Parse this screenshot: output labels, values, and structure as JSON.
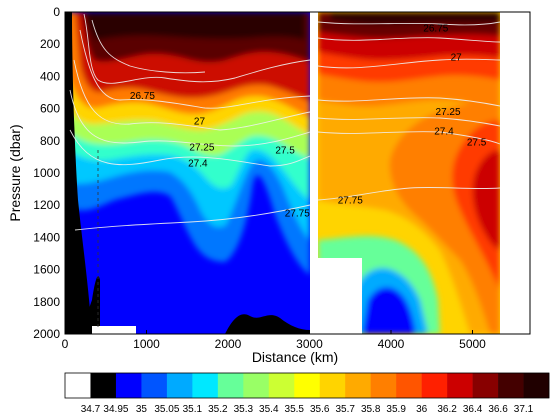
{
  "chart_data": {
    "type": "heatmap",
    "xlabel": "Distance (km)",
    "ylabel": "Pressure (dbar)",
    "xlim": [
      0,
      5400
    ],
    "ylim": [
      2000,
      0
    ],
    "x_ticks": [
      0,
      1000,
      2000,
      3000,
      4000,
      5000
    ],
    "y_ticks": [
      0,
      200,
      400,
      600,
      800,
      1000,
      1200,
      1400,
      1600,
      1800,
      2000
    ],
    "colorbar": {
      "labels": [
        "34.7",
        "34.95",
        "35",
        "35.05",
        "35.1",
        "35.2",
        "35.3",
        "35.4",
        "35.5",
        "35.6",
        "35.7",
        "35.8",
        "35.9",
        "36",
        "36.2",
        "36.4",
        "36.6",
        "37.1"
      ],
      "colors": [
        "#ffffff",
        "#000000",
        "#0000ff",
        "#0055ff",
        "#00aaff",
        "#00e8ff",
        "#66ff99",
        "#99ff66",
        "#ccff33",
        "#ffff00",
        "#ffd400",
        "#ffaa00",
        "#ff7f00",
        "#ff5500",
        "#ff2000",
        "#cc0000",
        "#880000",
        "#440000",
        "#200000"
      ]
    },
    "contours": [
      {
        "label": "26.75",
        "x": 4550,
        "p": 120
      },
      {
        "label": "27",
        "x": 4800,
        "p": 300
      },
      {
        "label": "26.75",
        "x": 950,
        "p": 540
      },
      {
        "label": "27",
        "x": 1650,
        "p": 700
      },
      {
        "label": "27.25",
        "x": 1680,
        "p": 860
      },
      {
        "label": "27.4",
        "x": 1630,
        "p": 960
      },
      {
        "label": "27.5",
        "x": 2700,
        "p": 880
      },
      {
        "label": "27.75",
        "x": 2850,
        "p": 1270
      },
      {
        "label": "27.25",
        "x": 4700,
        "p": 640
      },
      {
        "label": "27.4",
        "x": 4650,
        "p": 760
      },
      {
        "label": "27.5",
        "x": 5050,
        "p": 830
      },
      {
        "label": "27.75",
        "x": 3500,
        "p": 1190
      }
    ]
  }
}
